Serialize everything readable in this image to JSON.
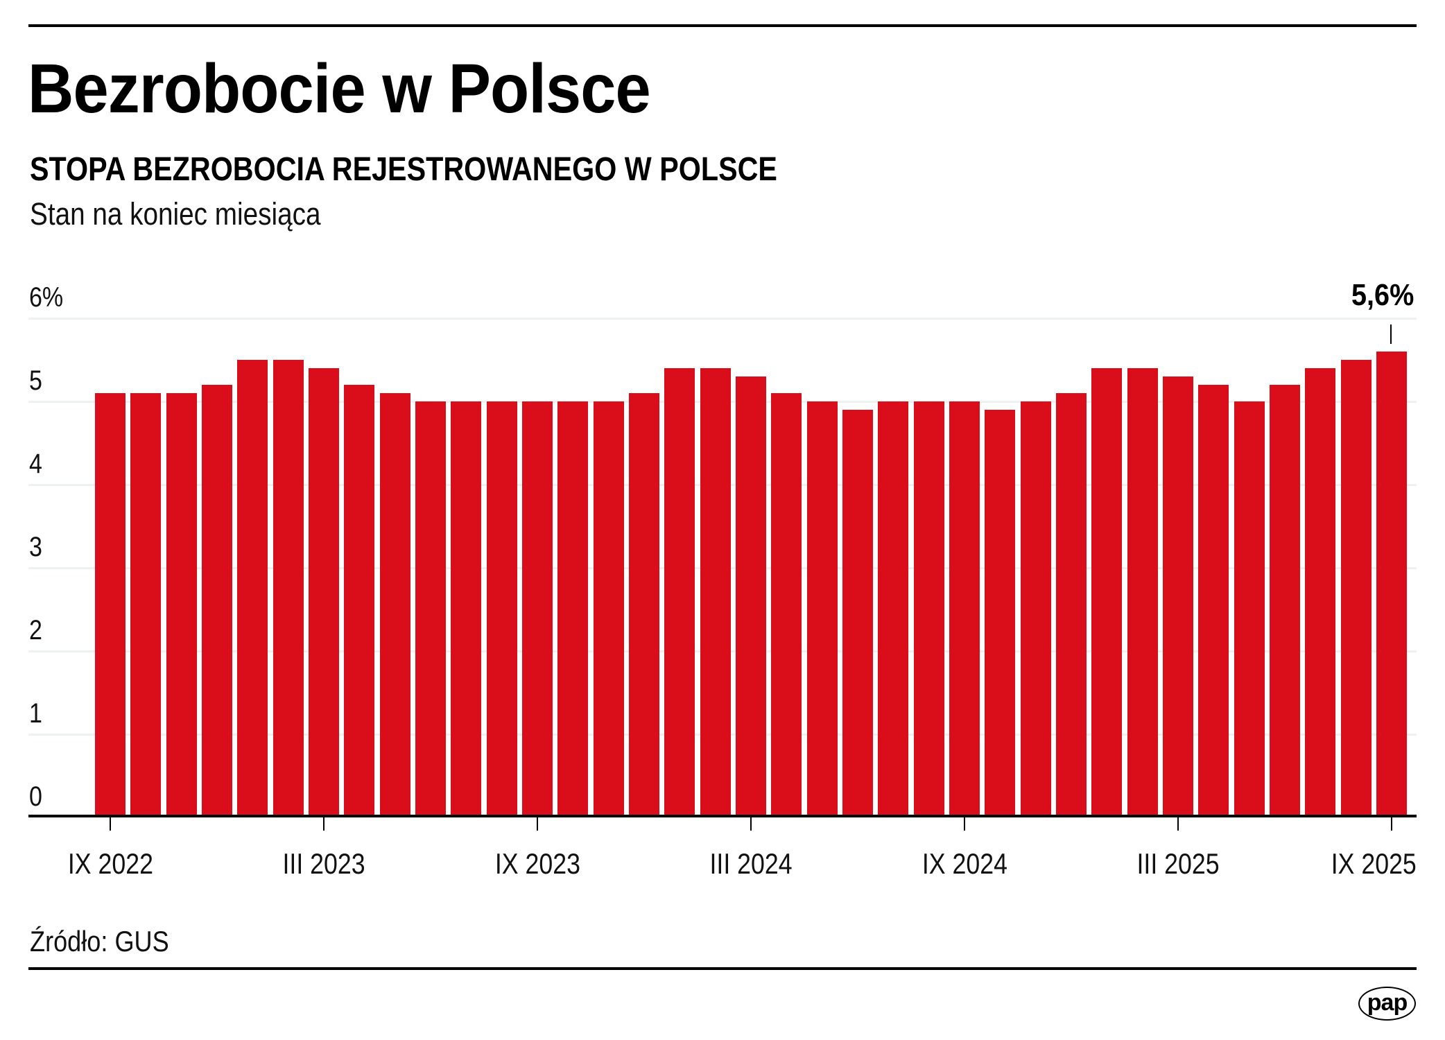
{
  "header": {
    "title": "Bezrobocie w Polsce",
    "subtitle": "STOPA BEZROBOCIA REJESTROWANEGO W POLSCE",
    "note": "Stan na koniec miesiąca"
  },
  "footer": {
    "source": "Źródło: GUS",
    "logo": "pap"
  },
  "colors": {
    "bar": "#da0e1a",
    "text": "#000000",
    "grid": "#eef1f1"
  },
  "annotation": {
    "label": "5,6%",
    "index": 36
  },
  "chart_data": {
    "type": "bar",
    "title": "Bezrobocie w Polsce",
    "subtitle": "STOPA BEZROBOCIA REJESTROWANEGO W POLSCE",
    "note": "Stan na koniec miesiąca",
    "source": "Źródło: GUS",
    "xlabel": "",
    "ylabel": "%",
    "ylim": [
      0,
      6
    ],
    "yticks": [
      {
        "value": 6,
        "label": "6%"
      },
      {
        "value": 5,
        "label": "5"
      },
      {
        "value": 4,
        "label": "4"
      },
      {
        "value": 3,
        "label": "3"
      },
      {
        "value": 2,
        "label": "2"
      },
      {
        "value": 1,
        "label": "1"
      },
      {
        "value": 0,
        "label": "0"
      }
    ],
    "xticks": [
      {
        "index": 0,
        "label": "IX 2022"
      },
      {
        "index": 6,
        "label": "III 2023"
      },
      {
        "index": 12,
        "label": "IX 2023"
      },
      {
        "index": 18,
        "label": "III 2024"
      },
      {
        "index": 24,
        "label": "IX 2024"
      },
      {
        "index": 30,
        "label": "III 2025"
      },
      {
        "index": 36,
        "label": "IX 2025"
      }
    ],
    "grid": true,
    "legend": null,
    "categories": [
      "IX 2022",
      "X 2022",
      "XI 2022",
      "XII 2022",
      "I 2023",
      "II 2023",
      "III 2023",
      "IV 2023",
      "V 2023",
      "VI 2023",
      "VII 2023",
      "VIII 2023",
      "IX 2023",
      "X 2023",
      "XI 2023",
      "XII 2023",
      "I 2024",
      "II 2024",
      "III 2024",
      "IV 2024",
      "V 2024",
      "VI 2024",
      "VII 2024",
      "VIII 2024",
      "IX 2024",
      "X 2024",
      "XI 2024",
      "XII 2024",
      "I 2025",
      "II 2025",
      "III 2025",
      "IV 2025",
      "V 2025",
      "VI 2025",
      "VII 2025",
      "VIII 2025",
      "IX 2025"
    ],
    "values": [
      5.1,
      5.1,
      5.1,
      5.2,
      5.5,
      5.5,
      5.4,
      5.2,
      5.1,
      5.0,
      5.0,
      5.0,
      5.0,
      5.0,
      5.0,
      5.1,
      5.4,
      5.4,
      5.3,
      5.1,
      5.0,
      4.9,
      5.0,
      5.0,
      5.0,
      4.9,
      5.0,
      5.1,
      5.4,
      5.4,
      5.3,
      5.2,
      5.0,
      5.2,
      5.4,
      5.5,
      5.6
    ],
    "annotations": [
      {
        "index": 36,
        "label": "5,6%"
      }
    ]
  }
}
